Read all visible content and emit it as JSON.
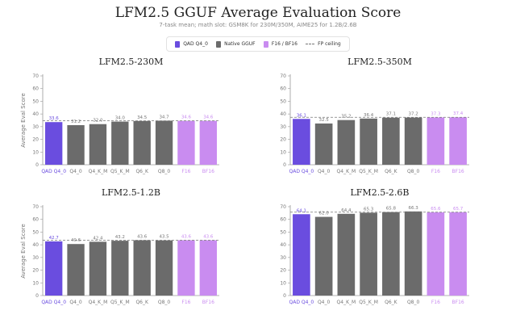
{
  "title": "LFM2.5 GGUF Average Evaluation Score",
  "subtitle": "7-task mean; math slot: GSM8K for 230M/350M, AIME25 for 1.2B/2.6B",
  "legend": {
    "qad": "QAD Q4_0",
    "native": "Native GGUF",
    "fp": "F16 / BF16",
    "ceiling": "FP ceiling"
  },
  "colors": {
    "qad": "#6a4ddf",
    "native": "#6b6b6b",
    "fp": "#c98cf0",
    "ceiling": "#777777"
  },
  "chart_data": [
    {
      "type": "bar",
      "title": "LFM2.5-230M",
      "ylabel": "Average Eval Score",
      "ylim": [
        0,
        70
      ],
      "yticks": [
        0,
        10,
        20,
        30,
        40,
        50,
        60,
        70
      ],
      "categories": [
        "QAD Q4_0",
        "Q4_0",
        "Q4_K_M",
        "Q5_K_M",
        "Q6_K",
        "Q8_0",
        "F16",
        "BF16"
      ],
      "values": [
        33.6,
        31.2,
        32.0,
        34.0,
        34.5,
        34.7,
        34.6,
        34.6
      ],
      "groups": [
        "qad",
        "native",
        "native",
        "native",
        "native",
        "native",
        "fp",
        "fp"
      ],
      "labels": [
        "33.6",
        "31.2",
        "32.0",
        "34.0",
        "34.5",
        "34.7",
        "34.6",
        "34.6"
      ],
      "ceiling": 34.6
    },
    {
      "type": "bar",
      "title": "LFM2.5-350M",
      "ylabel": "",
      "ylim": [
        0,
        70
      ],
      "yticks": [
        0,
        10,
        20,
        30,
        40,
        50,
        60,
        70
      ],
      "categories": [
        "QAD Q4_0",
        "Q4_0",
        "Q4_K_M",
        "Q5_K_M",
        "Q6_K",
        "Q8_0",
        "F16",
        "BF16"
      ],
      "values": [
        36.1,
        32.5,
        35.2,
        36.4,
        37.1,
        37.2,
        37.3,
        37.4
      ],
      "groups": [
        "qad",
        "native",
        "native",
        "native",
        "native",
        "native",
        "fp",
        "fp"
      ],
      "labels": [
        "36.1",
        "32.5",
        "35.2",
        "36.4",
        "37.1",
        "37.2",
        "37.3",
        "37.4"
      ],
      "ceiling": 37.4
    },
    {
      "type": "bar",
      "title": "LFM2.5-1.2B",
      "ylabel": "Average Eval Score",
      "ylim": [
        0,
        70
      ],
      "yticks": [
        0,
        10,
        20,
        30,
        40,
        50,
        60,
        70
      ],
      "categories": [
        "QAD Q4_0",
        "Q4_0",
        "Q4_K_M",
        "Q5_K_M",
        "Q6_K",
        "Q8_0",
        "F16",
        "BF16"
      ],
      "values": [
        42.7,
        40.6,
        42.4,
        43.2,
        43.6,
        43.5,
        43.6,
        43.6
      ],
      "groups": [
        "qad",
        "native",
        "native",
        "native",
        "native",
        "native",
        "fp",
        "fp"
      ],
      "labels": [
        "42.7",
        "40.6",
        "42.4",
        "43.2",
        "43.6",
        "43.5",
        "43.6",
        "43.6"
      ],
      "ceiling": 43.6
    },
    {
      "type": "bar",
      "title": "LFM2.5-2.6B",
      "ylabel": "",
      "ylim": [
        0,
        70
      ],
      "yticks": [
        0,
        10,
        20,
        30,
        40,
        50,
        60,
        70
      ],
      "categories": [
        "QAD Q4_0",
        "Q4_0",
        "Q4_K_M",
        "Q5_K_M",
        "Q6_K",
        "Q8_0",
        "F16",
        "BF16"
      ],
      "values": [
        64.1,
        62.0,
        64.4,
        65.3,
        65.8,
        66.3,
        65.6,
        65.7
      ],
      "groups": [
        "qad",
        "native",
        "native",
        "native",
        "native",
        "native",
        "fp",
        "fp"
      ],
      "labels": [
        "64.1",
        "62.0",
        "64.4",
        "65.3",
        "65.8",
        "66.3",
        "65.6",
        "65.7"
      ],
      "ceiling": 65.7
    }
  ]
}
